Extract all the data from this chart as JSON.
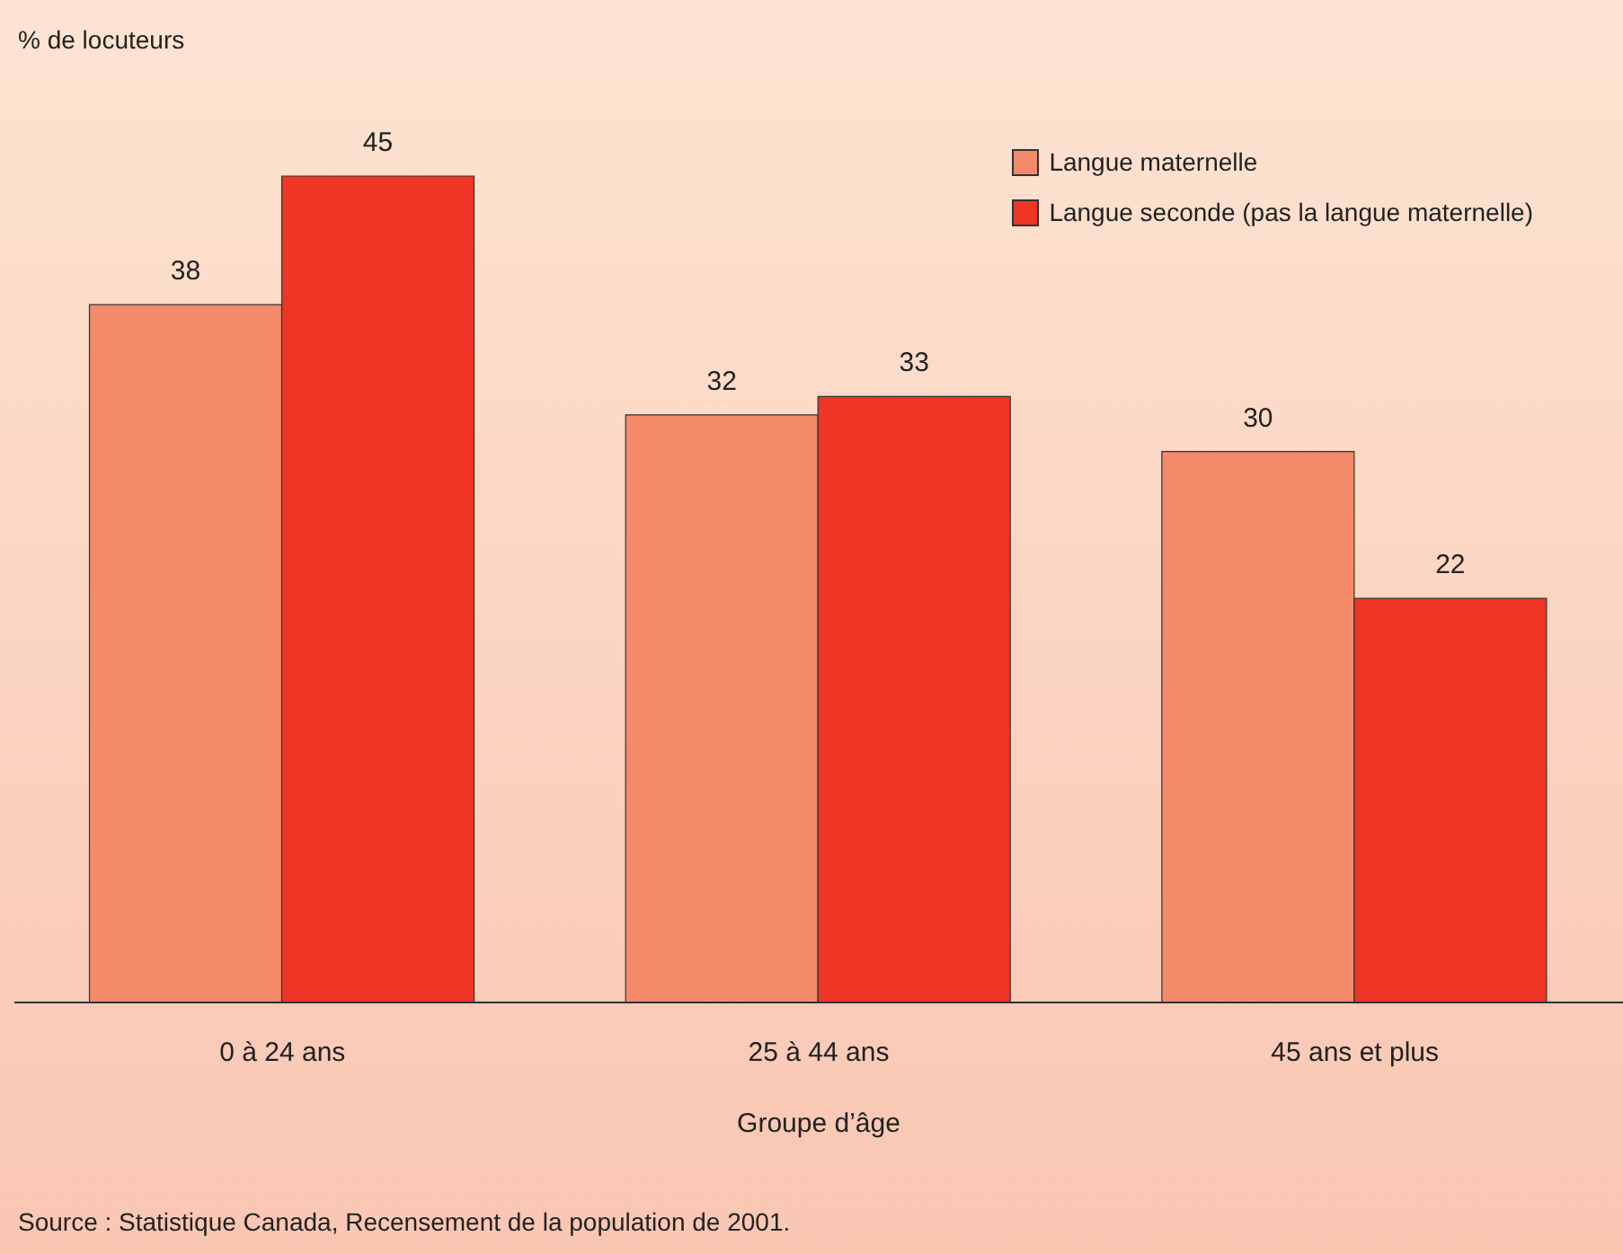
{
  "chart_data": {
    "type": "bar",
    "xlabel": "Groupe d’âge",
    "categories": [
      "0 à 24 ans",
      "25 à 44 ans",
      "45 ans et plus"
    ],
    "series": [
      {
        "name": "Langue maternelle",
        "color": "#f48a69",
        "values": [
          38,
          32,
          30
        ]
      },
      {
        "name": "Langue seconde (pas la langue maternelle)",
        "color": "#ee3526",
        "values": [
          45,
          33,
          22
        ]
      }
    ],
    "data_labels": true,
    "grid": false,
    "legend": "top right",
    "annotations": [
      "% de locuteurs",
      "Source : Statistique Canada, Recensement de la population de 2001."
    ]
  }
}
